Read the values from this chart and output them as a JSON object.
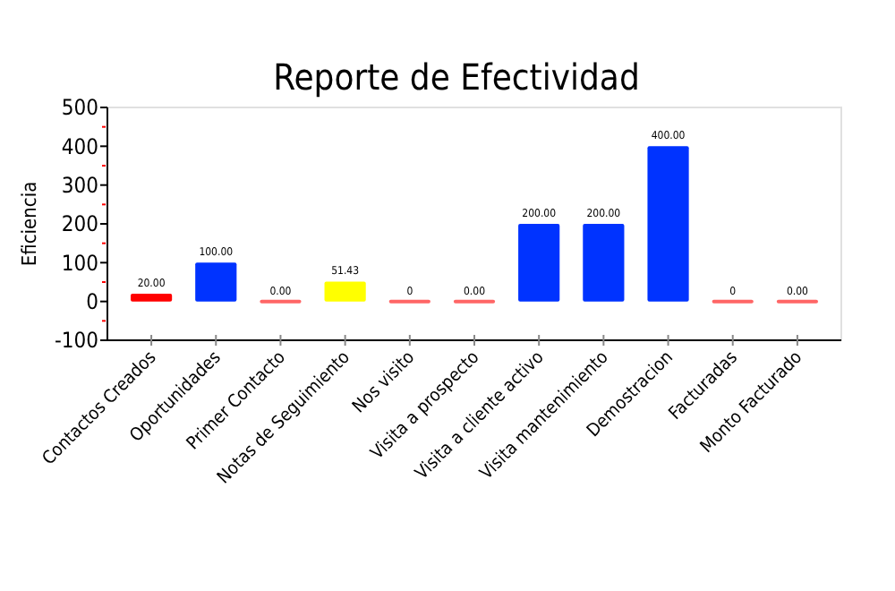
{
  "chart_data": {
    "type": "bar",
    "title": "Reporte de Efectividad",
    "ylabel": "Eficiencia",
    "categories": [
      "Contactos Creados",
      "Oportunidades",
      "Primer Contacto",
      "Notas de Seguimiento",
      "Nos visito",
      "Visita a prospecto",
      "Visita a cliente activo",
      "Visita mantenimiento",
      "Demostracion",
      "Facturadas",
      "Monto Facturado"
    ],
    "values": [
      20,
      100,
      0,
      51.43,
      0,
      0,
      200,
      200,
      400,
      0,
      0
    ],
    "value_labels": [
      "20.00",
      "100.00",
      "0.00",
      "51.43",
      "0",
      "0.00",
      "200.00",
      "200.00",
      "400.00",
      "0",
      "0.00"
    ],
    "colors": [
      "#ff0000",
      "#0033ff",
      "#ff6666",
      "#ffff00",
      "#ff6666",
      "#ff6666",
      "#0033ff",
      "#0033ff",
      "#0033ff",
      "#ff6666",
      "#ff6666"
    ],
    "ylim": [
      -100,
      500
    ],
    "yticks": [
      -100,
      {
        "value": -50,
        "label": null
      },
      0,
      {
        "value": 50,
        "label": null
      },
      100,
      {
        "value": 150,
        "label": null
      },
      200,
      {
        "value": 250,
        "label": null
      },
      300,
      {
        "value": 350,
        "label": null
      },
      400,
      {
        "value": 450,
        "label": null
      },
      500
    ],
    "grid": false
  }
}
